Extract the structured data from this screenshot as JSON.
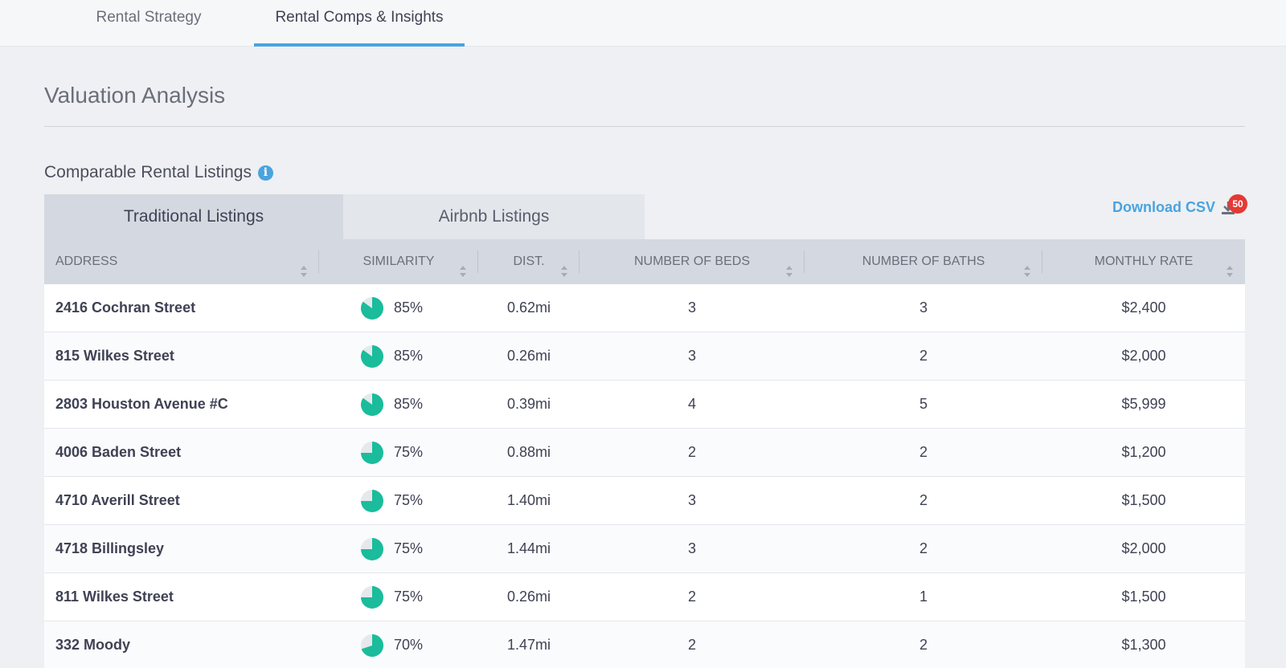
{
  "top_tabs": [
    {
      "label": "Rental Strategy",
      "active": false
    },
    {
      "label": "Rental Comps & Insights",
      "active": true
    }
  ],
  "section_title": "Valuation Analysis",
  "comparable": {
    "title": "Comparable Rental Listings",
    "info_icon": "info-circle-icon"
  },
  "list_tabs": [
    {
      "label": "Traditional Listings",
      "active": true
    },
    {
      "label": "Airbnb Listings",
      "active": false
    }
  ],
  "download": {
    "label": "Download CSV",
    "icon": "download-icon",
    "badge": "50",
    "badge_color": "#e53935"
  },
  "colors": {
    "accent": "#4aa3df",
    "similarity": "#1abc9c"
  },
  "table": {
    "headers": [
      "ADDRESS",
      "SIMILARITY",
      "DIST.",
      "NUMBER OF BEDS",
      "NUMBER OF BATHS",
      "MONTHLY RATE"
    ],
    "rows": [
      {
        "address": "2416 Cochran Street",
        "similarity": 85,
        "similarity_label": "85%",
        "dist": "0.62mi",
        "beds": "3",
        "baths": "3",
        "rate": "$2,400"
      },
      {
        "address": "815 Wilkes Street",
        "similarity": 85,
        "similarity_label": "85%",
        "dist": "0.26mi",
        "beds": "3",
        "baths": "2",
        "rate": "$2,000"
      },
      {
        "address": "2803 Houston Avenue #C",
        "similarity": 85,
        "similarity_label": "85%",
        "dist": "0.39mi",
        "beds": "4",
        "baths": "5",
        "rate": "$5,999"
      },
      {
        "address": "4006 Baden Street",
        "similarity": 75,
        "similarity_label": "75%",
        "dist": "0.88mi",
        "beds": "2",
        "baths": "2",
        "rate": "$1,200"
      },
      {
        "address": "4710 Averill Street",
        "similarity": 75,
        "similarity_label": "75%",
        "dist": "1.40mi",
        "beds": "3",
        "baths": "2",
        "rate": "$1,500"
      },
      {
        "address": "4718 Billingsley",
        "similarity": 75,
        "similarity_label": "75%",
        "dist": "1.44mi",
        "beds": "3",
        "baths": "2",
        "rate": "$2,000"
      },
      {
        "address": "811 Wilkes Street",
        "similarity": 75,
        "similarity_label": "75%",
        "dist": "0.26mi",
        "beds": "2",
        "baths": "1",
        "rate": "$1,500"
      },
      {
        "address": "332 Moody",
        "similarity": 70,
        "similarity_label": "70%",
        "dist": "1.47mi",
        "beds": "2",
        "baths": "2",
        "rate": "$1,300"
      }
    ]
  }
}
